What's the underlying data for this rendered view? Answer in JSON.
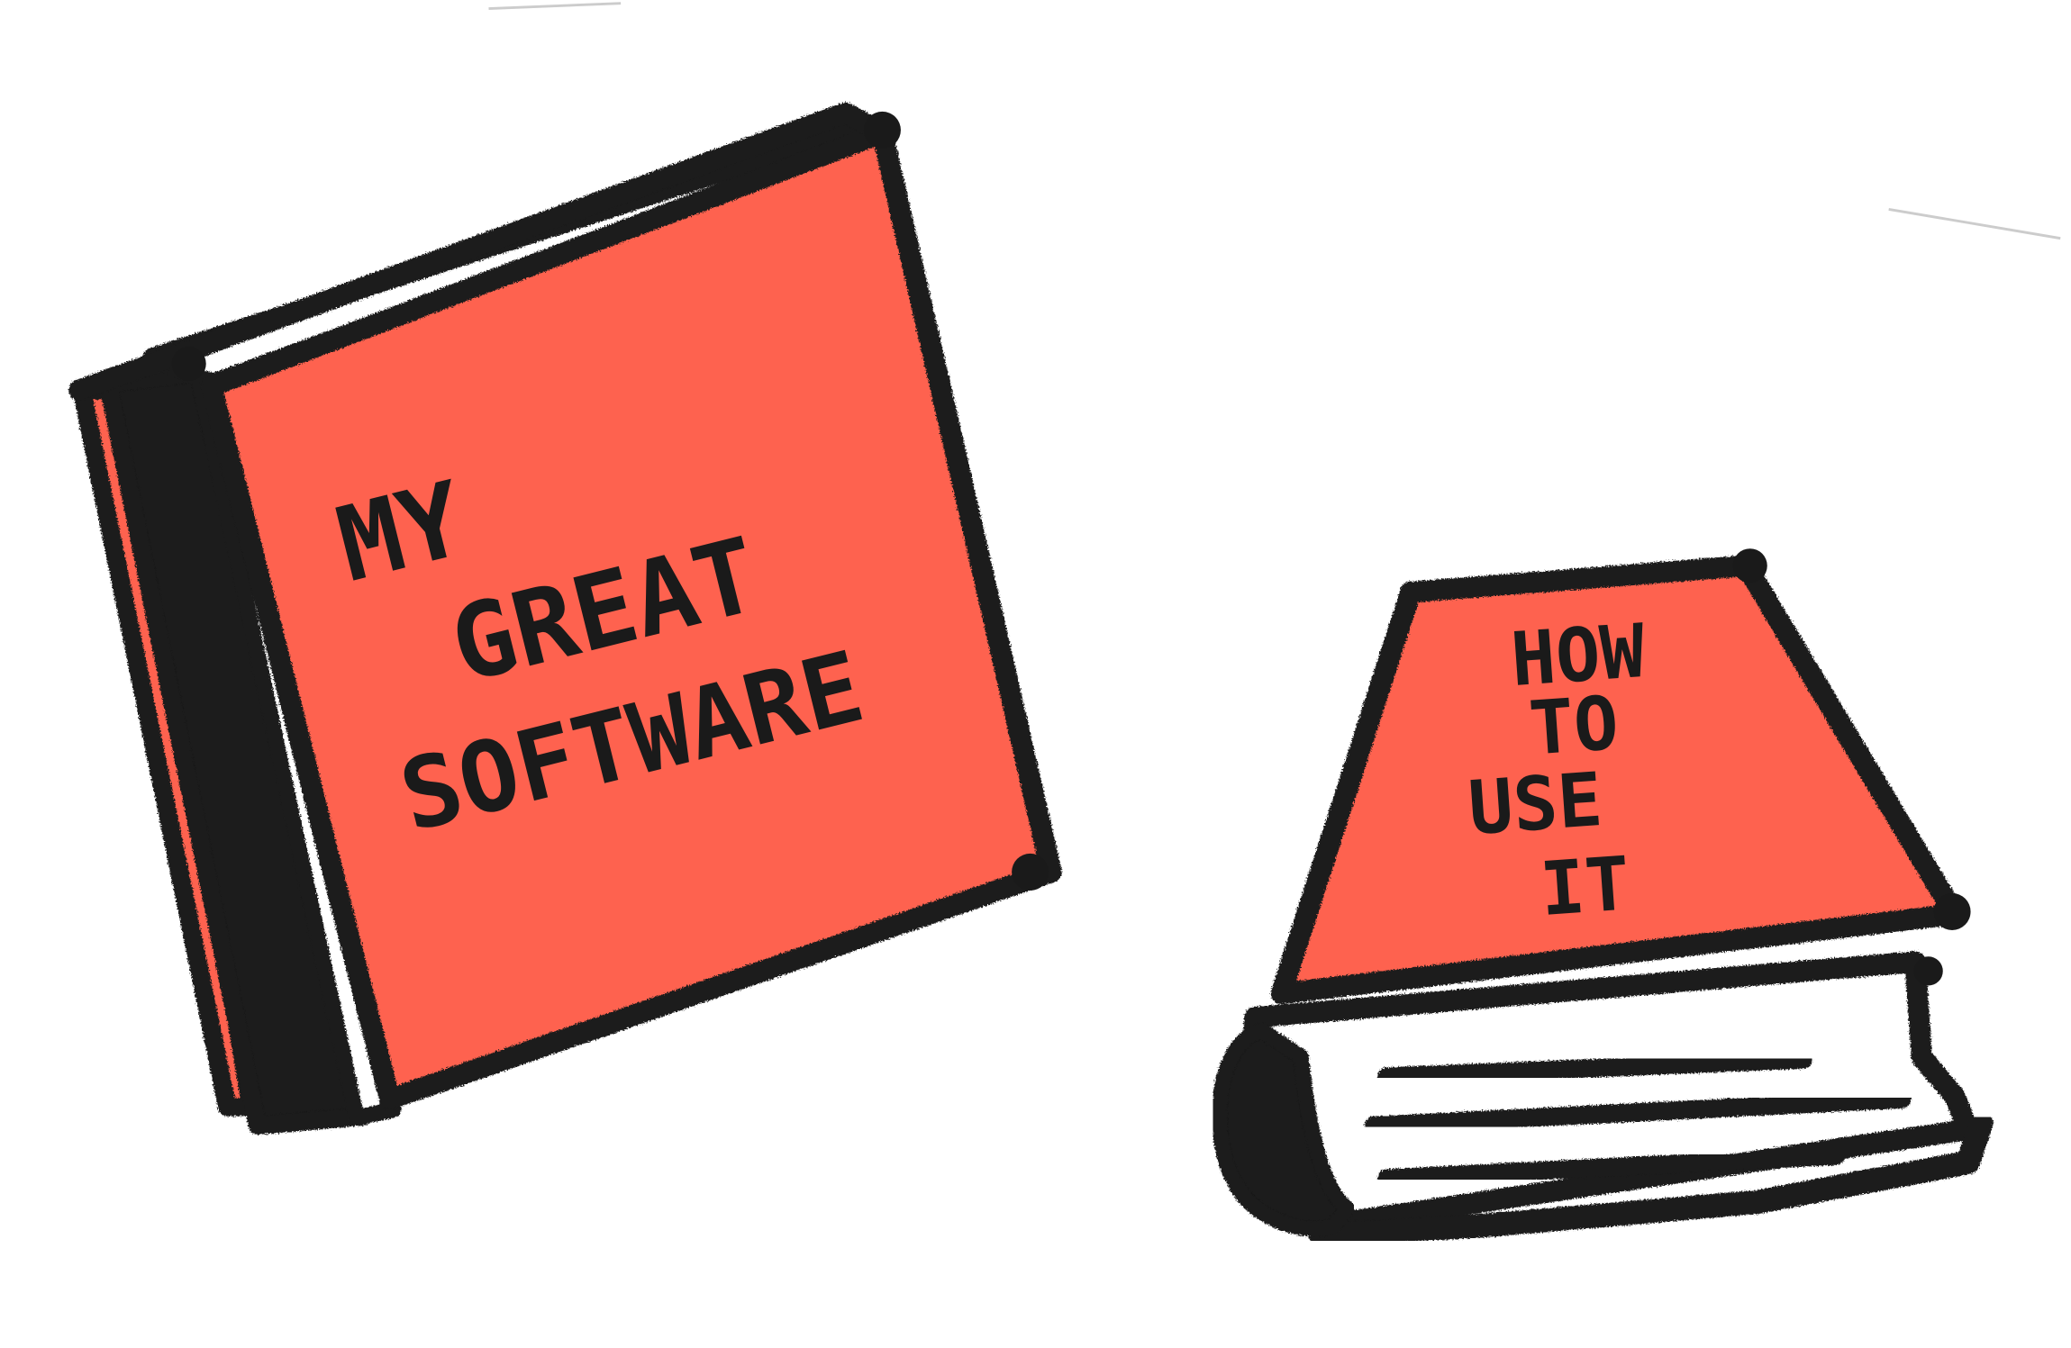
{
  "illustration": {
    "book_upright": {
      "cover_lines": [
        "MY",
        "GREAT",
        "SOFTWARE"
      ]
    },
    "book_lying": {
      "cover_lines": [
        "HOW",
        "TO",
        "USE",
        "IT"
      ]
    }
  },
  "colors": {
    "cover": "#fe624f",
    "ink": "#1a1a1a",
    "pages": "#ffffff",
    "background": "#ffffff"
  }
}
